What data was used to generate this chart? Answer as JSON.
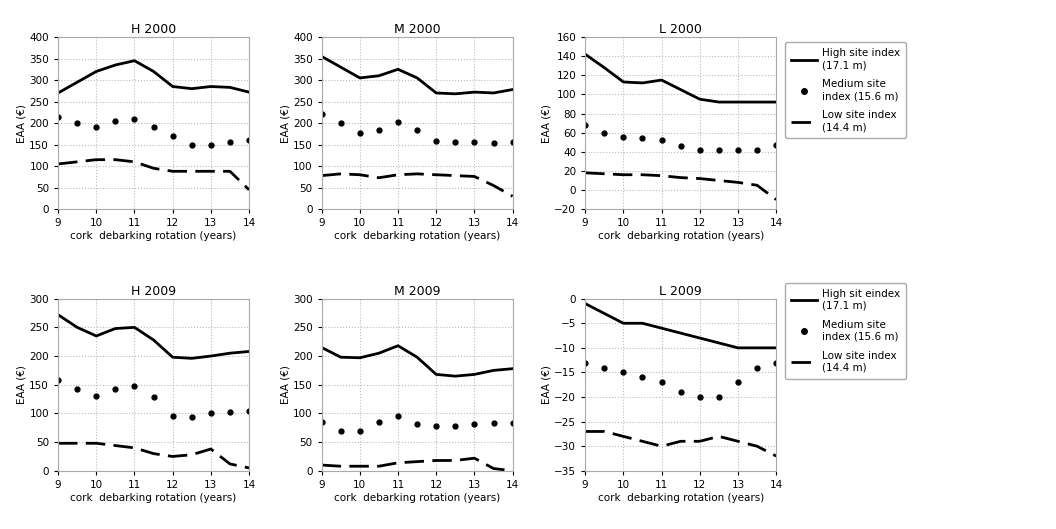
{
  "x": [
    9,
    9.5,
    10,
    10.5,
    11,
    11.5,
    12,
    12.5,
    13,
    13.5,
    14
  ],
  "panels": [
    {
      "title": "H 2000",
      "ylim": [
        0,
        400
      ],
      "yticks": [
        0,
        50,
        100,
        150,
        200,
        250,
        300,
        350,
        400
      ],
      "high": [
        270,
        295,
        320,
        335,
        345,
        320,
        285,
        280,
        285,
        283,
        272
      ],
      "medium": [
        215,
        200,
        190,
        205,
        210,
        190,
        170,
        148,
        150,
        155,
        160
      ],
      "low": [
        105,
        110,
        115,
        115,
        110,
        95,
        88,
        88,
        88,
        88,
        45
      ]
    },
    {
      "title": "M 2000",
      "ylim": [
        0,
        400
      ],
      "yticks": [
        0,
        50,
        100,
        150,
        200,
        250,
        300,
        350,
        400
      ],
      "high": [
        355,
        330,
        305,
        310,
        325,
        305,
        270,
        268,
        272,
        270,
        278
      ],
      "medium": [
        220,
        200,
        178,
        185,
        202,
        185,
        158,
        155,
        155,
        153,
        155
      ],
      "low": [
        78,
        82,
        80,
        73,
        80,
        82,
        80,
        78,
        76,
        55,
        30
      ]
    },
    {
      "title": "L 2000",
      "ylim": [
        -20,
        160
      ],
      "yticks": [
        -20,
        0,
        20,
        40,
        60,
        80,
        100,
        120,
        140,
        160
      ],
      "high": [
        142,
        128,
        113,
        112,
        115,
        105,
        95,
        92,
        92,
        92,
        92
      ],
      "medium": [
        68,
        60,
        55,
        54,
        52,
        46,
        42,
        42,
        42,
        42,
        47
      ],
      "low": [
        18,
        17,
        16,
        16,
        15,
        13,
        12,
        10,
        8,
        5,
        -10
      ]
    },
    {
      "title": "H 2009",
      "ylim": [
        0,
        300
      ],
      "yticks": [
        0,
        50,
        100,
        150,
        200,
        250,
        300
      ],
      "high": [
        272,
        250,
        235,
        248,
        250,
        228,
        198,
        196,
        200,
        205,
        208
      ],
      "medium": [
        158,
        142,
        130,
        143,
        148,
        128,
        95,
        93,
        100,
        103,
        105
      ],
      "low": [
        48,
        48,
        48,
        44,
        40,
        30,
        25,
        28,
        38,
        12,
        5
      ]
    },
    {
      "title": "M 2009",
      "ylim": [
        0,
        300
      ],
      "yticks": [
        0,
        50,
        100,
        150,
        200,
        250,
        300
      ],
      "high": [
        215,
        198,
        197,
        205,
        218,
        198,
        168,
        165,
        168,
        175,
        178
      ],
      "medium": [
        85,
        70,
        70,
        85,
        95,
        82,
        78,
        78,
        82,
        83,
        83
      ],
      "low": [
        10,
        8,
        8,
        8,
        14,
        16,
        18,
        18,
        22,
        4,
        0
      ]
    },
    {
      "title": "L 2009",
      "ylim": [
        -35,
        0
      ],
      "yticks": [
        -35,
        -30,
        -25,
        -20,
        -15,
        -10,
        -5,
        0
      ],
      "high": [
        -1,
        -3,
        -5,
        -5,
        -6,
        -7,
        -8,
        -9,
        -10,
        -10,
        -10
      ],
      "medium": [
        -13,
        -14,
        -15,
        -16,
        -17,
        -19,
        -20,
        -20,
        -17,
        -14,
        -13
      ],
      "low": [
        -27,
        -27,
        -28,
        -29,
        -30,
        -29,
        -29,
        -28,
        -29,
        -30,
        -32
      ]
    }
  ],
  "legend_top": {
    "high_label": "High site index\n(17.1 m)",
    "medium_label": "Medium site\nindex (15.6 m)",
    "low_label": "Low site index\n(14.4 m)"
  },
  "legend_bottom": {
    "high_label": "High sit eindex\n(17.1 m)",
    "medium_label": "Medium site\nindex (15.6 m)",
    "low_label": "Low site index\n(14.4 m)"
  },
  "xlabel": "cork  debarking rotation (years)",
  "ylabel": "EAA (€)",
  "bg_color": "#ffffff",
  "grid_color": "#bbbbbb",
  "title_fontsize": 9,
  "label_fontsize": 7.5,
  "tick_fontsize": 7.5,
  "legend_fontsize": 7.5
}
